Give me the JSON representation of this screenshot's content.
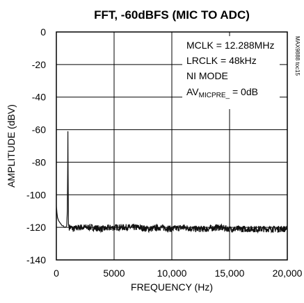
{
  "chart_data": {
    "type": "line",
    "title": "FFT, -60dBFS (MIC TO ADC)",
    "xlabel": "FREQUENCY (Hz)",
    "ylabel": "AMPLITUDE (dBV)",
    "xlim": [
      0,
      20000
    ],
    "ylim": [
      -140,
      0
    ],
    "xticks": [
      0,
      5000,
      10000,
      15000,
      20000
    ],
    "xtick_labels": [
      "0",
      "5000",
      "10,000",
      "15,000",
      "20,000"
    ],
    "yticks": [
      0,
      -20,
      -40,
      -60,
      -80,
      -100,
      -120,
      -140
    ],
    "ytick_labels": [
      "0",
      "-20",
      "-40",
      "-60",
      "-80",
      "-100",
      "-120",
      "-140"
    ],
    "grid": true,
    "annotations": {
      "line1": "MCLK = 12.288MHz",
      "line2": "LRCLK = 48kHz",
      "line3": "NI MODE",
      "line4_main": "AV",
      "line4_sub": "MICPRE_",
      "line4_rest": " = 0dB"
    },
    "side_code": "MAX9888 toc15",
    "series": [
      {
        "x": [
          0,
          50,
          100,
          200,
          300,
          400,
          500,
          600,
          700,
          800,
          900,
          950,
          990,
          1000,
          1010,
          1050,
          1100,
          1200,
          1500,
          2000,
          3000,
          4000,
          5000,
          6000,
          7000,
          8000,
          9000,
          10000,
          11000,
          12000,
          13000,
          14000,
          15000,
          16000,
          17000,
          18000,
          19000,
          20000
        ],
        "y": [
          -107,
          -111,
          -114,
          -116,
          -117,
          -118,
          -119,
          -119,
          -120,
          -120,
          -119,
          -110,
          -80,
          -61,
          -80,
          -118,
          -120,
          -120,
          -121,
          -120,
          -120,
          -121,
          -120,
          -120,
          -120,
          -121,
          -120,
          -121,
          -120,
          -121,
          -121,
          -120,
          -121,
          -121,
          -121,
          -121,
          -121,
          -121
        ]
      }
    ]
  }
}
